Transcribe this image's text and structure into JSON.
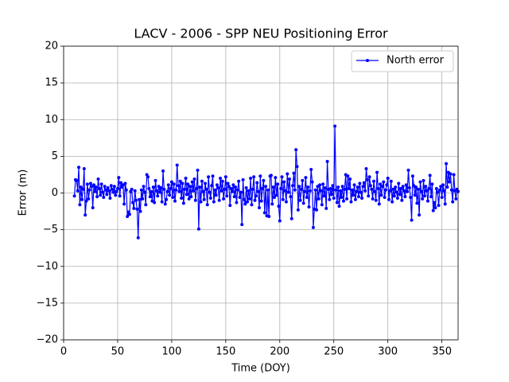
{
  "chart_data": {
    "type": "line",
    "title": "LACV - 2006 - SPP NEU Positioning Error",
    "x_label": "Time (DOY)",
    "y_label": "Error (m)",
    "xlim": [
      0,
      365
    ],
    "ylim": [
      -20,
      20
    ],
    "xticks": [
      0,
      50,
      100,
      150,
      200,
      250,
      300,
      350
    ],
    "yticks": [
      {
        "value": -20,
        "label": "−20"
      },
      {
        "value": -15,
        "label": "−15"
      },
      {
        "value": -10,
        "label": "−10"
      },
      {
        "value": -5,
        "label": "−5"
      },
      0,
      5,
      10,
      15,
      20
    ],
    "grid": true,
    "legend": "upper right",
    "x": [
      10,
      11,
      12,
      13,
      14,
      15,
      16,
      17,
      18,
      19,
      20,
      21,
      22,
      23,
      24,
      25,
      26,
      27,
      28,
      29,
      30,
      31,
      32,
      33,
      34,
      35,
      36,
      37,
      38,
      39,
      40,
      41,
      42,
      43,
      44,
      45,
      46,
      47,
      48,
      49,
      50,
      51,
      52,
      53,
      54,
      55,
      56,
      57,
      58,
      59,
      60,
      61,
      62,
      63,
      64,
      65,
      66,
      67,
      68,
      69,
      70,
      71,
      72,
      73,
      74,
      75,
      76,
      77,
      78,
      79,
      80,
      81,
      82,
      83,
      84,
      85,
      86,
      87,
      88,
      89,
      90,
      91,
      92,
      93,
      94,
      95,
      96,
      97,
      98,
      99,
      100,
      101,
      102,
      103,
      104,
      105,
      106,
      107,
      108,
      109,
      110,
      111,
      112,
      113,
      114,
      115,
      116,
      117,
      118,
      119,
      120,
      121,
      122,
      123,
      124,
      125,
      126,
      127,
      128,
      129,
      130,
      131,
      132,
      133,
      134,
      135,
      136,
      137,
      138,
      139,
      140,
      141,
      142,
      143,
      144,
      145,
      146,
      147,
      148,
      149,
      150,
      151,
      152,
      153,
      154,
      155,
      156,
      157,
      158,
      159,
      160,
      161,
      162,
      163,
      164,
      165,
      166,
      167,
      168,
      169,
      170,
      171,
      172,
      173,
      174,
      175,
      176,
      177,
      178,
      179,
      180,
      181,
      182,
      183,
      184,
      185,
      186,
      187,
      188,
      189,
      190,
      191,
      192,
      193,
      194,
      195,
      196,
      197,
      198,
      199,
      200,
      201,
      202,
      203,
      204,
      205,
      206,
      207,
      208,
      209,
      210,
      211,
      212,
      213,
      214,
      215,
      216,
      217,
      218,
      219,
      220,
      221,
      222,
      223,
      224,
      225,
      226,
      227,
      228,
      229,
      230,
      231,
      232,
      233,
      234,
      235,
      236,
      237,
      238,
      239,
      240,
      241,
      242,
      243,
      244,
      245,
      246,
      247,
      248,
      249,
      250,
      251,
      252,
      253,
      254,
      255,
      256,
      257,
      258,
      259,
      260,
      261,
      262,
      263,
      264,
      265,
      266,
      267,
      268,
      269,
      270,
      271,
      272,
      273,
      274,
      275,
      276,
      277,
      278,
      279,
      280,
      281,
      282,
      283,
      284,
      285,
      286,
      287,
      288,
      289,
      290,
      291,
      292,
      293,
      294,
      295,
      296,
      297,
      298,
      299,
      300,
      301,
      302,
      303,
      304,
      305,
      306,
      307,
      308,
      309,
      310,
      311,
      312,
      313,
      314,
      315,
      316,
      317,
      318,
      319,
      320,
      321,
      322,
      323,
      324,
      325,
      326,
      327,
      328,
      329,
      330,
      331,
      332,
      333,
      334,
      335,
      336,
      337,
      338,
      339,
      340,
      341,
      342,
      343,
      344,
      345,
      346,
      347,
      348,
      349,
      350,
      351,
      352,
      353,
      354,
      355,
      356,
      357,
      358,
      359,
      360,
      361,
      362,
      363,
      364,
      365
    ],
    "series": [
      {
        "name": "North error",
        "color": "#0000ff",
        "values": [
          -0.4,
          1.8,
          1.7,
          0.3,
          3.5,
          -1.6,
          0.8,
          -0.9,
          0.5,
          3.3,
          -3.0,
          -1.1,
          1.2,
          -0.8,
          0.4,
          1.3,
          0.9,
          -2.0,
          1.1,
          0.2,
          0.8,
          -0.5,
          1.9,
          0.6,
          -0.3,
          1.2,
          0.1,
          -0.6,
          0.9,
          0.4,
          -0.2,
          0.7,
          0.3,
          -0.7,
          1.0,
          0.5,
          0.1,
          0.9,
          -0.3,
          0.2,
          0.6,
          2.1,
          -0.4,
          1.4,
          0.8,
          1.1,
          -1.5,
          1.3,
          0.4,
          -3.2,
          -2.6,
          -2.9,
          0.2,
          0.5,
          -1.3,
          -2.1,
          0.3,
          -1.0,
          -2.2,
          -6.1,
          -0.9,
          -2.5,
          0.4,
          -0.8,
          0.9,
          0.1,
          -1.6,
          2.5,
          2.2,
          0.6,
          -0.5,
          0.2,
          -1.1,
          0.8,
          -1.3,
          1.7,
          0.3,
          -0.4,
          0.9,
          0.1,
          0.7,
          -1.2,
          3.0,
          0.5,
          -1.5,
          -0.9,
          0.2,
          1.1,
          -0.3,
          0.6,
          1.5,
          -0.6,
          1.2,
          -1.1,
          0.4,
          3.8,
          1.0,
          0.2,
          1.6,
          -0.7,
          1.3,
          -1.4,
          0.5,
          2.0,
          -0.2,
          1.2,
          -0.8,
          0.9,
          -0.5,
          1.5,
          0.3,
          1.9,
          -1.0,
          0.6,
          3.1,
          -4.9,
          0.8,
          -1.2,
          1.6,
          0.2,
          -0.9,
          1.3,
          0.5,
          -1.6,
          2.2,
          0.1,
          -0.7,
          1.0,
          2.3,
          -1.2,
          0.4,
          -0.3,
          1.1,
          0.7,
          -1.0,
          2.0,
          0.3,
          1.6,
          -0.8,
          0.5,
          2.2,
          -0.4,
          1.3,
          0.9,
          -1.7,
          0.6,
          0.2,
          1.1,
          -0.5,
          0.8,
          -1.3,
          0.4,
          1.6,
          -0.6,
          0.1,
          -4.3,
          1.8,
          -0.9,
          -1.5,
          0.7,
          -1.2,
          0.3,
          -0.8,
          2.0,
          -1.6,
          0.5,
          2.2,
          -1.0,
          -0.4,
          1.4,
          0.2,
          -2.0,
          2.3,
          -1.1,
          0.6,
          1.7,
          -2.7,
          0.9,
          -3.1,
          0.4,
          -3.2,
          2.3,
          2.4,
          -1.5,
          0.8,
          -0.6,
          2.1,
          -0.3,
          1.2,
          -1.8,
          -3.8,
          0.6,
          2.2,
          -0.9,
          1.5,
          0.3,
          -1.2,
          2.6,
          0.1,
          1.9,
          -0.5,
          -3.5,
          1.0,
          2.7,
          0.4,
          5.9,
          3.6,
          -2.3,
          0.9,
          -1.0,
          0.5,
          1.7,
          -1.4,
          0.2,
          2.1,
          -0.6,
          0.8,
          -1.9,
          0.3,
          3.2,
          1.5,
          -4.7,
          -2.2,
          0.4,
          -2.3,
          0.9,
          -0.8,
          1.1,
          0.3,
          -1.6,
          1.2,
          -0.4,
          0.7,
          -2.1,
          4.3,
          0.5,
          -0.9,
          0.6,
          -0.2,
          1.0,
          -0.7,
          9.1,
          0.4,
          -1.3,
          0.8,
          -1.8,
          0.3,
          -0.6,
          0.9,
          -1.1,
          0.5,
          2.5,
          -0.8,
          2.3,
          0.6,
          1.9,
          -1.2,
          0.4,
          -0.3,
          1.1,
          -0.9,
          0.2,
          0.8,
          -0.5,
          1.3,
          0.1,
          -0.7,
          0.9,
          1.4,
          0.3,
          3.3,
          1.8,
          -0.4,
          2.2,
          1.0,
          0.5,
          -0.8,
          1.6,
          0.2,
          -1.0,
          2.8,
          0.6,
          -1.5,
          1.2,
          -0.3,
          0.9,
          1.5,
          -0.6,
          0.4,
          1.1,
          2.0,
          -0.9,
          0.3,
          1.6,
          -1.2,
          0.5,
          -0.4,
          0.8,
          0.1,
          -0.7,
          1.3,
          -0.2,
          0.6,
          -1.0,
          0.9,
          0.3,
          -0.5,
          1.1,
          0.2,
          3.1,
          0.7,
          -0.6,
          -3.7,
          2.3,
          1.0,
          -0.3,
          0.8,
          -1.4,
          0.5,
          -3.0,
          1.5,
          0.2,
          -0.8,
          1.7,
          -0.4,
          0.9,
          0.3,
          -1.1,
          0.6,
          2.4,
          -0.5,
          1.2,
          -2.4,
          -1.3,
          -2.0,
          0.6,
          0.1,
          -1.7,
          0.4,
          0.9,
          -0.6,
          1.1,
          0.3,
          -1.5,
          4.0,
          0.8,
          2.8,
          1.5,
          2.6,
          0.4,
          -1.2,
          2.5,
          0.3,
          -0.8,
          0.5,
          0.2
        ]
      }
    ]
  }
}
